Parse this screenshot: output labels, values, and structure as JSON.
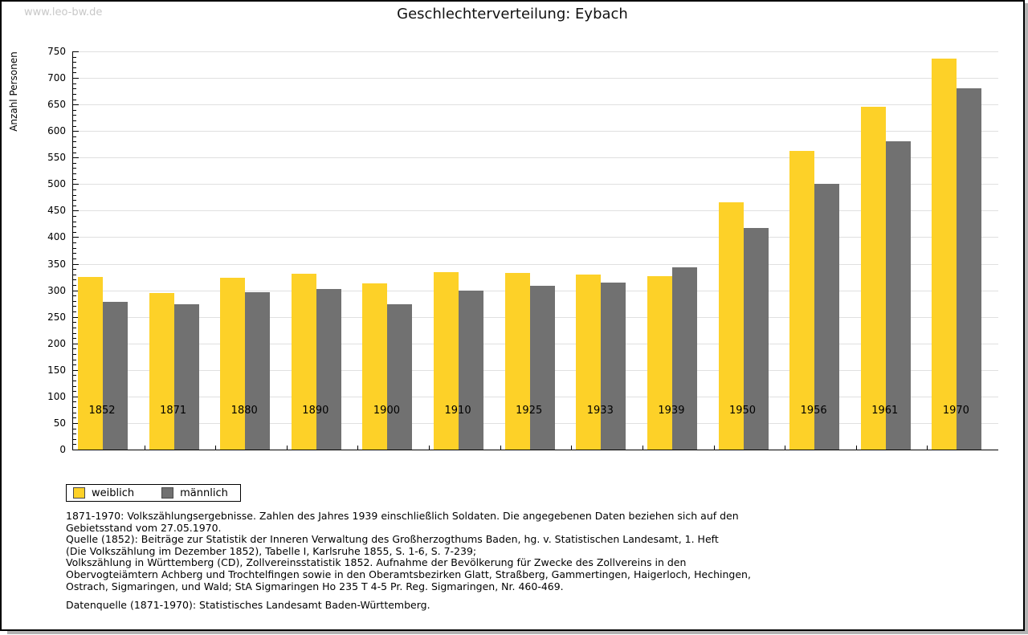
{
  "page": {
    "watermark": "www.leo-bw.de",
    "title": "Geschlechterverteilung: Eybach"
  },
  "chart_data": {
    "type": "bar",
    "title": "Geschlechterverteilung: Eybach",
    "xlabel": "",
    "ylabel": "Anzahl Personen",
    "ylim": [
      0,
      750
    ],
    "ytick_step": 50,
    "ytick_minor_step": 10,
    "grid": true,
    "legend_position": "bottom-left",
    "categories": [
      "1852",
      "1871",
      "1880",
      "1890",
      "1900",
      "1910",
      "1925",
      "1933",
      "1939",
      "1950",
      "1956",
      "1961",
      "1970"
    ],
    "series": [
      {
        "name": "weiblich",
        "color": "#fdd128",
        "values": [
          325,
          295,
          323,
          331,
          313,
          334,
          332,
          329,
          327,
          465,
          562,
          646,
          736
        ]
      },
      {
        "name": "männlich",
        "color": "#717171",
        "values": [
          278,
          273,
          297,
          303,
          273,
          300,
          308,
          315,
          343,
          418,
          500,
          581,
          680
        ]
      }
    ]
  },
  "footer": {
    "lines": [
      "1871-1970: Volkszählungsergebnisse. Zahlen des Jahres 1939 einschließlich Soldaten. Die angegebenen Daten beziehen sich auf den",
      "Gebietsstand vom 27.05.1970.",
      "Quelle (1852): Beiträge zur Statistik der Inneren Verwaltung des Großherzogthums Baden, hg. v. Statistischen Landesamt, 1. Heft",
      "(Die Volkszählung im Dezember 1852), Tabelle I, Karlsruhe 1855, S. 1-6, S. 7-239;",
      "Volkszählung in Württemberg (CD), Zollvereinsstatistik 1852. Aufnahme der Bevölkerung für Zwecke des Zollvereins in den",
      "Obervogteiämtern Achberg und Trochtelfingen sowie in den Oberamtsbezirken Glatt, Straßberg, Gammertingen, Haigerloch, Hechingen,",
      "Ostrach, Sigmaringen, und Wald; StA Sigmaringen Ho 235 T 4-5 Pr. Reg. Sigmaringen, Nr. 460-469."
    ],
    "datasource": "Datenquelle (1871-1970): Statistisches Landesamt Baden-Württemberg."
  }
}
